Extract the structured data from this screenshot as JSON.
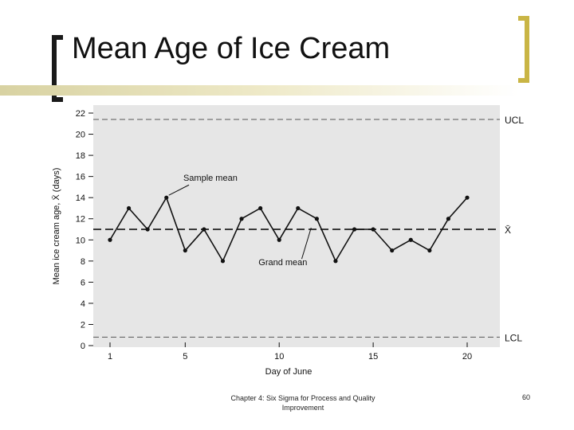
{
  "slide": {
    "title": "Mean Age of Ice Cream",
    "footer": "Chapter 4: Six Sigma for Process and Quality Improvement",
    "page_number": "60"
  },
  "colors": {
    "plot_background": "#e6e6e6",
    "accent_bracket": "#c9b545",
    "line": "#111111"
  },
  "chart_data": {
    "type": "line",
    "xlabel": "Day of June",
    "ylabel": "Mean ice cream age, X̄ (days)",
    "xlim": [
      0.5,
      21
    ],
    "ylim": [
      0,
      22
    ],
    "x_ticks": [
      1,
      5,
      10,
      15,
      20
    ],
    "y_ticks": [
      0,
      2,
      4,
      6,
      8,
      10,
      12,
      14,
      16,
      18,
      20,
      22
    ],
    "series": [
      {
        "x": [
          1,
          2,
          3,
          4,
          5,
          6,
          7,
          8,
          9,
          10,
          11,
          12,
          13,
          14,
          15,
          16,
          17,
          18,
          19,
          20
        ],
        "values": [
          10,
          13,
          11,
          14,
          9,
          11,
          8,
          12,
          13,
          10,
          13,
          12,
          8,
          11,
          11,
          9,
          10,
          9,
          12,
          14
        ]
      }
    ],
    "reference_lines": [
      {
        "label": "UCL",
        "value": 21.4,
        "style": "dashed"
      },
      {
        "label": "X̄",
        "value": 11,
        "style": "dashed-bold"
      },
      {
        "label": "LCL",
        "value": 0.8,
        "style": "dashed"
      }
    ],
    "annotations": [
      {
        "text": "Sample mean",
        "points_to": {
          "x": 4,
          "y": 14
        }
      },
      {
        "text": "Grand mean",
        "points_to": {
          "x": 11.7,
          "y": 11
        }
      }
    ],
    "grid": false
  }
}
